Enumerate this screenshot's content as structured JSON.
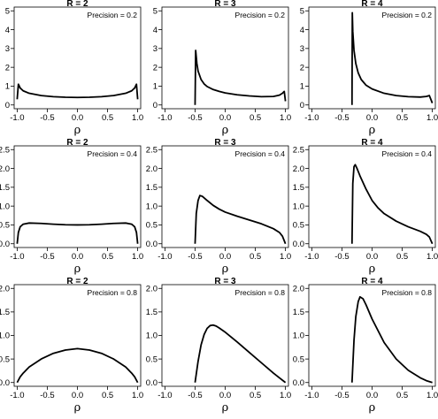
{
  "chart_data": [
    {
      "type": "line",
      "title": "R = 2",
      "annotation": "Precision = 0.2",
      "xlabel": "ρ",
      "ylabel": "",
      "xlim": [
        -1,
        1
      ],
      "ylim": [
        0,
        5
      ],
      "xticks": [
        "-1.0",
        "-0.5",
        "0.0",
        "0.5",
        "1.0"
      ],
      "yticks": [
        "0",
        "1",
        "2",
        "3",
        "4",
        "5"
      ],
      "series": [
        {
          "x": [
            -1.0,
            -0.98,
            -0.95,
            -0.9,
            -0.8,
            -0.6,
            -0.4,
            -0.2,
            0.0,
            0.2,
            0.4,
            0.6,
            0.8,
            0.9,
            0.95,
            0.98,
            1.0
          ],
          "y": [
            0.3,
            1.1,
            0.9,
            0.75,
            0.62,
            0.5,
            0.44,
            0.41,
            0.4,
            0.41,
            0.44,
            0.5,
            0.62,
            0.75,
            0.9,
            1.1,
            0.3
          ]
        }
      ]
    },
    {
      "type": "line",
      "title": "R = 3",
      "annotation": "Precision = 0.2",
      "xlabel": "ρ",
      "ylabel": "",
      "xlim": [
        -1,
        1
      ],
      "ylim": [
        0,
        5
      ],
      "xticks": [
        "-1.0",
        "-0.5",
        "0.0",
        "0.5",
        "1.0"
      ],
      "yticks": [
        "0",
        "1",
        "2",
        "3",
        "4",
        "5"
      ],
      "series": [
        {
          "x": [
            -0.5,
            -0.49,
            -0.47,
            -0.45,
            -0.4,
            -0.35,
            -0.3,
            -0.2,
            -0.1,
            0.0,
            0.2,
            0.4,
            0.6,
            0.8,
            0.9,
            0.95,
            0.98,
            1.0
          ],
          "y": [
            0.0,
            2.9,
            2.2,
            1.8,
            1.35,
            1.12,
            0.98,
            0.82,
            0.72,
            0.64,
            0.54,
            0.48,
            0.44,
            0.45,
            0.52,
            0.62,
            0.72,
            0.2
          ]
        }
      ]
    },
    {
      "type": "line",
      "title": "R = 4",
      "annotation": "Precision = 0.2",
      "xlabel": "ρ",
      "ylabel": "",
      "xlim": [
        -1,
        1
      ],
      "ylim": [
        0,
        5
      ],
      "xticks": [
        "-1.0",
        "-0.5",
        "0.0",
        "0.5",
        "1.0"
      ],
      "yticks": [
        "0",
        "1",
        "2",
        "3",
        "4",
        "5"
      ],
      "series": [
        {
          "x": [
            -0.333,
            -0.328,
            -0.32,
            -0.3,
            -0.27,
            -0.23,
            -0.18,
            -0.1,
            0.0,
            0.2,
            0.4,
            0.6,
            0.8,
            0.9,
            0.95,
            1.0
          ],
          "y": [
            0.0,
            4.9,
            3.9,
            2.9,
            2.2,
            1.7,
            1.35,
            1.05,
            0.85,
            0.62,
            0.5,
            0.44,
            0.42,
            0.45,
            0.5,
            0.1
          ]
        }
      ]
    },
    {
      "type": "line",
      "title": "R = 2",
      "annotation": "Precision = 0.4",
      "xlabel": "ρ",
      "ylabel": "",
      "xlim": [
        -1,
        1
      ],
      "ylim": [
        0,
        2.5
      ],
      "xticks": [
        "-1.0",
        "-0.5",
        "0.0",
        "0.5",
        "1.0"
      ],
      "yticks": [
        "0.0",
        "0.5",
        "1.0",
        "1.5",
        "2.0",
        "2.5"
      ],
      "series": [
        {
          "x": [
            -1.0,
            -0.98,
            -0.95,
            -0.9,
            -0.8,
            -0.6,
            -0.4,
            -0.2,
            0.0,
            0.2,
            0.4,
            0.6,
            0.8,
            0.9,
            0.95,
            0.98,
            1.0
          ],
          "y": [
            0.0,
            0.3,
            0.45,
            0.52,
            0.55,
            0.54,
            0.52,
            0.505,
            0.5,
            0.505,
            0.52,
            0.54,
            0.55,
            0.52,
            0.45,
            0.3,
            0.0
          ]
        }
      ]
    },
    {
      "type": "line",
      "title": "R = 3",
      "annotation": "Precision = 0.4",
      "xlabel": "ρ",
      "ylabel": "",
      "xlim": [
        -1,
        1
      ],
      "ylim": [
        0,
        2.5
      ],
      "xticks": [
        "-1.0",
        "-0.5",
        "0.0",
        "0.5",
        "1.0"
      ],
      "yticks": [
        "0.0",
        "0.5",
        "1.0",
        "1.5",
        "2.0",
        "2.5"
      ],
      "series": [
        {
          "x": [
            -0.5,
            -0.48,
            -0.45,
            -0.42,
            -0.38,
            -0.3,
            -0.2,
            -0.1,
            0.0,
            0.2,
            0.4,
            0.6,
            0.8,
            0.9,
            0.95,
            1.0
          ],
          "y": [
            0.0,
            0.8,
            1.15,
            1.28,
            1.26,
            1.15,
            1.02,
            0.92,
            0.84,
            0.73,
            0.63,
            0.53,
            0.4,
            0.3,
            0.2,
            0.0
          ]
        }
      ]
    },
    {
      "type": "line",
      "title": "R = 4",
      "annotation": "Precision = 0.4",
      "xlabel": "ρ",
      "ylabel": "",
      "xlim": [
        -1,
        1
      ],
      "ylim": [
        0,
        2.5
      ],
      "xticks": [
        "-1.0",
        "-0.5",
        "0.0",
        "0.5",
        "1.0"
      ],
      "yticks": [
        "0.0",
        "0.5",
        "1.0",
        "1.5",
        "2.0",
        "2.5"
      ],
      "series": [
        {
          "x": [
            -0.333,
            -0.32,
            -0.3,
            -0.28,
            -0.25,
            -0.2,
            -0.1,
            0.0,
            0.1,
            0.2,
            0.4,
            0.6,
            0.8,
            0.9,
            0.95,
            1.0
          ],
          "y": [
            0.0,
            1.6,
            2.05,
            2.1,
            2.0,
            1.8,
            1.45,
            1.15,
            0.95,
            0.8,
            0.6,
            0.45,
            0.33,
            0.25,
            0.18,
            0.0
          ]
        }
      ]
    },
    {
      "type": "line",
      "title": "R = 2",
      "annotation": "Precision = 0.8",
      "xlabel": "ρ",
      "ylabel": "",
      "xlim": [
        -1,
        1
      ],
      "ylim": [
        0,
        2.0
      ],
      "xticks": [
        "-1.0",
        "-0.5",
        "0.0",
        "0.5",
        "1.0"
      ],
      "yticks": [
        "0.0",
        "0.5",
        "1.0",
        "1.5",
        "2.0"
      ],
      "series": [
        {
          "x": [
            -1.0,
            -0.95,
            -0.9,
            -0.8,
            -0.6,
            -0.4,
            -0.2,
            0.0,
            0.2,
            0.4,
            0.6,
            0.8,
            0.9,
            0.95,
            1.0
          ],
          "y": [
            0.0,
            0.12,
            0.2,
            0.33,
            0.5,
            0.62,
            0.69,
            0.72,
            0.69,
            0.62,
            0.5,
            0.33,
            0.2,
            0.12,
            0.0
          ]
        }
      ]
    },
    {
      "type": "line",
      "title": "R = 3",
      "annotation": "Precision = 0.8",
      "xlabel": "ρ",
      "ylabel": "",
      "xlim": [
        -1,
        1
      ],
      "ylim": [
        0,
        2.0
      ],
      "xticks": [
        "-1.0",
        "-0.5",
        "0.0",
        "0.5",
        "1.0"
      ],
      "yticks": [
        "0.0",
        "0.5",
        "1.0",
        "1.5",
        "2.0"
      ],
      "series": [
        {
          "x": [
            -0.5,
            -0.45,
            -0.4,
            -0.35,
            -0.3,
            -0.25,
            -0.2,
            -0.15,
            -0.1,
            0.0,
            0.2,
            0.4,
            0.6,
            0.8,
            0.9,
            1.0
          ],
          "y": [
            0.0,
            0.45,
            0.8,
            1.02,
            1.15,
            1.21,
            1.22,
            1.2,
            1.16,
            1.07,
            0.86,
            0.64,
            0.42,
            0.2,
            0.1,
            0.0
          ]
        }
      ]
    },
    {
      "type": "line",
      "title": "R = 4",
      "annotation": "Precision = 0.8",
      "xlabel": "ρ",
      "ylabel": "",
      "xlim": [
        -1,
        1
      ],
      "ylim": [
        0,
        2.0
      ],
      "xticks": [
        "-1.0",
        "-0.5",
        "0.0",
        "0.5",
        "1.0"
      ],
      "yticks": [
        "0.0",
        "0.5",
        "1.0",
        "1.5",
        "2.0"
      ],
      "series": [
        {
          "x": [
            -0.333,
            -0.3,
            -0.27,
            -0.23,
            -0.2,
            -0.15,
            -0.1,
            0.0,
            0.2,
            0.4,
            0.6,
            0.8,
            0.9,
            1.0
          ],
          "y": [
            0.0,
            0.9,
            1.4,
            1.72,
            1.82,
            1.78,
            1.65,
            1.35,
            0.85,
            0.5,
            0.26,
            0.1,
            0.04,
            0.0
          ]
        }
      ]
    }
  ]
}
